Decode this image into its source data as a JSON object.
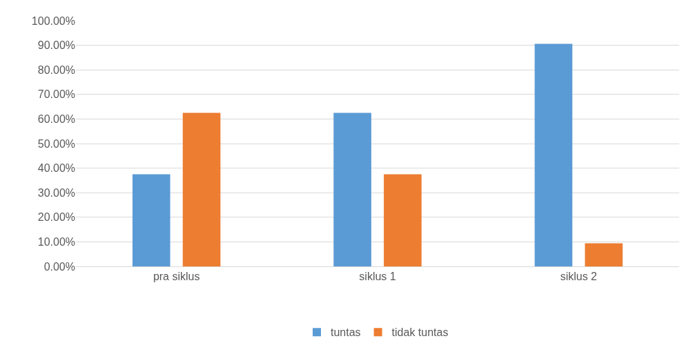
{
  "chart_data": {
    "type": "bar",
    "categories": [
      "pra siklus",
      "siklus 1",
      "siklus 2"
    ],
    "series": [
      {
        "name": "tuntas",
        "color": "#5b9bd5",
        "values": [
          37.5,
          62.5,
          90.6
        ]
      },
      {
        "name": "tidak tuntas",
        "color": "#ed7d31",
        "values": [
          62.5,
          37.5,
          9.4
        ]
      }
    ],
    "ylim": [
      0,
      100
    ],
    "yticks": [
      {
        "value": 0,
        "label": "0.00%"
      },
      {
        "value": 10,
        "label": "10.00%"
      },
      {
        "value": 20,
        "label": "20.00%"
      },
      {
        "value": 30,
        "label": "30.00%"
      },
      {
        "value": 40,
        "label": "40.00%"
      },
      {
        "value": 50,
        "label": "50.00%"
      },
      {
        "value": 60,
        "label": "60.00%"
      },
      {
        "value": 70,
        "label": "70.00%"
      },
      {
        "value": 80,
        "label": "80.00%"
      },
      {
        "value": 90,
        "label": "90.00%"
      },
      {
        "value": 100,
        "label": "100.00%"
      }
    ],
    "grid": "y",
    "legend": "bottom"
  }
}
